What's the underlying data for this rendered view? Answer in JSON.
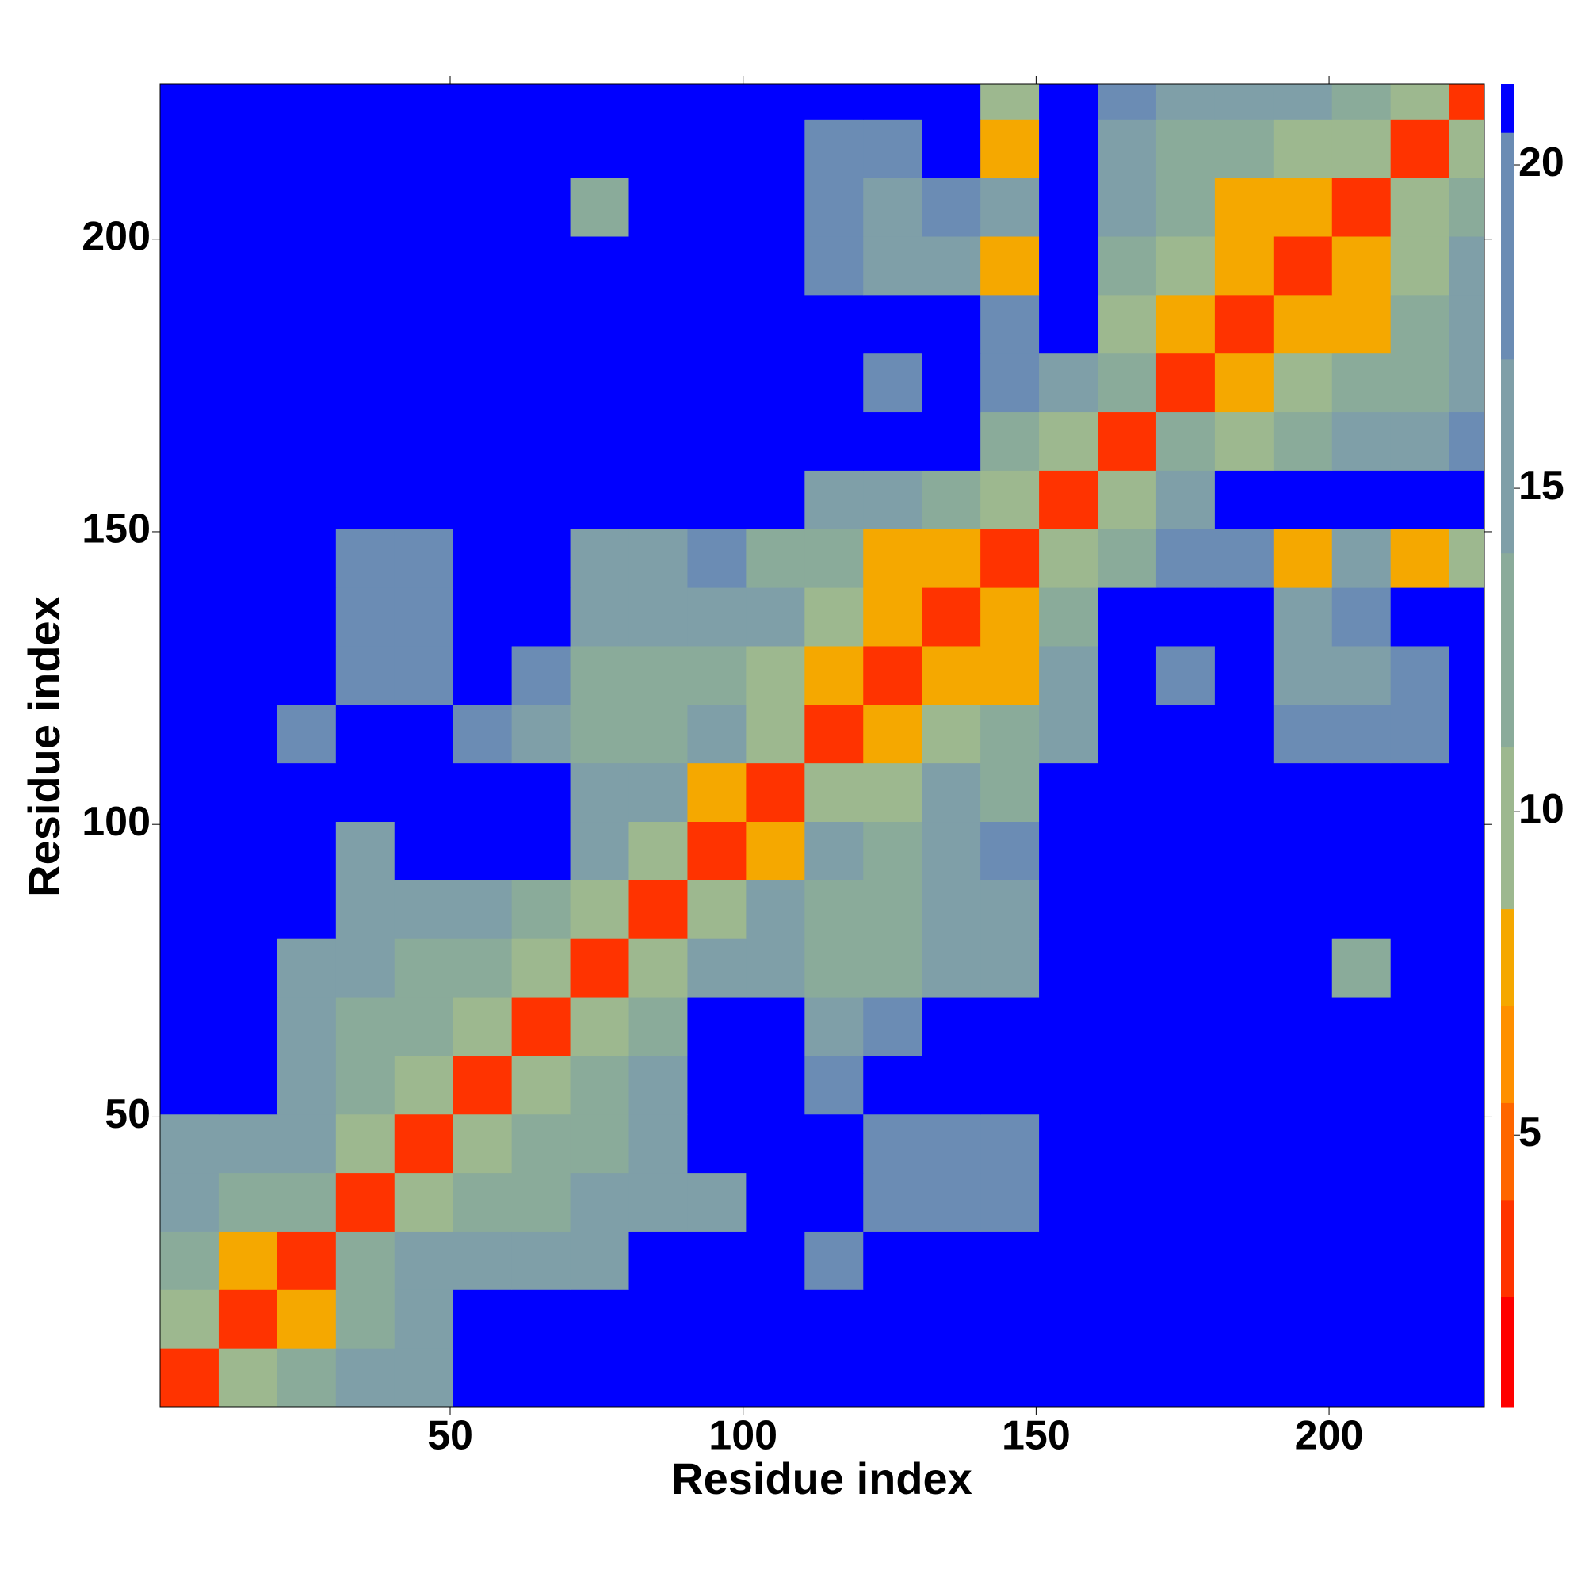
{
  "chart_data": {
    "type": "heatmap",
    "x_label": "Residue index",
    "y_label": "Residue index",
    "xlim": [
      0.5,
      226.5
    ],
    "ylim": [
      0.5,
      226.5
    ],
    "xticks": [
      50,
      100,
      150,
      200
    ],
    "yticks": [
      50,
      100,
      150,
      200
    ],
    "xbins": [
      0.5,
      10.5,
      20.5,
      30.5,
      40.5,
      50.5,
      60.5,
      70.5,
      80.5,
      90.5,
      100.5,
      110.5,
      120.5,
      130.5,
      140.5,
      150.5,
      160.5,
      170.5,
      180.5,
      190.5,
      200.5,
      210.5,
      220.5,
      226.5
    ],
    "ybins": [
      0.5,
      10.5,
      20.5,
      30.5,
      40.5,
      50.5,
      60.5,
      70.5,
      80.5,
      90.5,
      100.5,
      110.5,
      120.5,
      130.5,
      140.5,
      150.5,
      160.5,
      170.5,
      180.5,
      190.5,
      200.5,
      210.5,
      220.5,
      226.5
    ],
    "z": [
      [
        3,
        9,
        12,
        14,
        16,
        21,
        21,
        21,
        21,
        21,
        21,
        21,
        21,
        21,
        21,
        21,
        21,
        21,
        21,
        21,
        21,
        21,
        21
      ],
      [
        9,
        3,
        8,
        13,
        15,
        21,
        21,
        21,
        21,
        21,
        21,
        21,
        21,
        21,
        21,
        21,
        21,
        21,
        21,
        21,
        21,
        21,
        21
      ],
      [
        12,
        8,
        3,
        12,
        15,
        16,
        16,
        16,
        21,
        21,
        21,
        18,
        21,
        21,
        21,
        21,
        21,
        21,
        21,
        21,
        21,
        21,
        21
      ],
      [
        14,
        13,
        12,
        3,
        9,
        11,
        13,
        14,
        16,
        16,
        21,
        21,
        17,
        18,
        17,
        21,
        21,
        21,
        21,
        21,
        21,
        21,
        21
      ],
      [
        16,
        15,
        15,
        9,
        3,
        10,
        11,
        13,
        14,
        21,
        21,
        21,
        17,
        18,
        17,
        21,
        21,
        21,
        21,
        21,
        21,
        21,
        21
      ],
      [
        21,
        21,
        16,
        11,
        10,
        3,
        9,
        12,
        15,
        21,
        21,
        18,
        21,
        21,
        21,
        21,
        21,
        21,
        21,
        21,
        21,
        21,
        21
      ],
      [
        21,
        21,
        16,
        13,
        11,
        9,
        3,
        9,
        13,
        21,
        21,
        16,
        17,
        21,
        21,
        21,
        21,
        21,
        21,
        21,
        21,
        21,
        21
      ],
      [
        21,
        21,
        16,
        14,
        13,
        12,
        9,
        3,
        9,
        14,
        16,
        13,
        13,
        15,
        16,
        21,
        21,
        21,
        21,
        21,
        12,
        21,
        21
      ],
      [
        21,
        21,
        21,
        16,
        14,
        15,
        13,
        9,
        3,
        10,
        15,
        13,
        12,
        14,
        15,
        21,
        21,
        21,
        21,
        21,
        21,
        21,
        21
      ],
      [
        21,
        21,
        21,
        16,
        21,
        21,
        21,
        14,
        10,
        3,
        8,
        14,
        12,
        15,
        17,
        21,
        21,
        21,
        21,
        21,
        21,
        21,
        21
      ],
      [
        21,
        21,
        21,
        21,
        21,
        21,
        21,
        16,
        15,
        8,
        3,
        10,
        9,
        14,
        13,
        21,
        21,
        21,
        21,
        21,
        21,
        21,
        21
      ],
      [
        21,
        21,
        18,
        21,
        21,
        18,
        16,
        13,
        13,
        14,
        10,
        3,
        8,
        9,
        12,
        16,
        21,
        21,
        21,
        17,
        17,
        18,
        21
      ],
      [
        21,
        21,
        21,
        17,
        17,
        21,
        17,
        13,
        12,
        12,
        9,
        8,
        3,
        8,
        8,
        14,
        21,
        18,
        21,
        16,
        16,
        17,
        21
      ],
      [
        21,
        21,
        21,
        18,
        18,
        21,
        21,
        15,
        14,
        15,
        14,
        9,
        8,
        3,
        8,
        13,
        21,
        21,
        21,
        16,
        17,
        21,
        21
      ],
      [
        21,
        21,
        21,
        17,
        17,
        21,
        21,
        16,
        15,
        17,
        13,
        12,
        8,
        8,
        3,
        9,
        13,
        17,
        17,
        8,
        16,
        8,
        10
      ],
      [
        21,
        21,
        21,
        21,
        21,
        21,
        21,
        21,
        21,
        21,
        21,
        16,
        14,
        13,
        9,
        3,
        10,
        16,
        21,
        21,
        21,
        21,
        21
      ],
      [
        21,
        21,
        21,
        21,
        21,
        21,
        21,
        21,
        21,
        21,
        21,
        21,
        21,
        21,
        13,
        10,
        3,
        11,
        9,
        12,
        14,
        16,
        18
      ],
      [
        21,
        21,
        21,
        21,
        21,
        21,
        21,
        21,
        21,
        21,
        21,
        21,
        18,
        21,
        17,
        16,
        11,
        3,
        8,
        9,
        12,
        13,
        16
      ],
      [
        21,
        21,
        21,
        21,
        21,
        21,
        21,
        21,
        21,
        21,
        21,
        21,
        21,
        21,
        17,
        21,
        9,
        8,
        3,
        8,
        8,
        13,
        15
      ],
      [
        21,
        21,
        21,
        21,
        21,
        21,
        21,
        21,
        21,
        21,
        21,
        17,
        16,
        16,
        8,
        21,
        12,
        9,
        8,
        3,
        8,
        10,
        14
      ],
      [
        21,
        21,
        21,
        21,
        21,
        21,
        21,
        12,
        21,
        21,
        21,
        17,
        16,
        17,
        16,
        21,
        14,
        12,
        8,
        8,
        3,
        9,
        12
      ],
      [
        21,
        21,
        21,
        21,
        21,
        21,
        21,
        21,
        21,
        21,
        21,
        18,
        17,
        21,
        8,
        21,
        16,
        13,
        13,
        10,
        9,
        3,
        9
      ],
      [
        21,
        21,
        21,
        21,
        21,
        21,
        21,
        21,
        21,
        21,
        21,
        21,
        21,
        21,
        10,
        21,
        18,
        16,
        15,
        14,
        12,
        9,
        3
      ]
    ],
    "colorbar": {
      "zlim": [
        0.8,
        21.25
      ],
      "zticks": [
        5,
        10,
        15,
        20
      ],
      "levels": [
        0.8,
        2.5,
        4,
        5.5,
        7,
        8.5,
        11,
        14,
        17,
        20.5,
        21.25
      ],
      "colors": [
        "#ff0000",
        "#ff3300",
        "#ff6600",
        "#ff9000",
        "#f5a800",
        "#9db88f",
        "#8aab9a",
        "#7f9fa8",
        "#6b8cb4",
        "#0000ff"
      ]
    }
  }
}
